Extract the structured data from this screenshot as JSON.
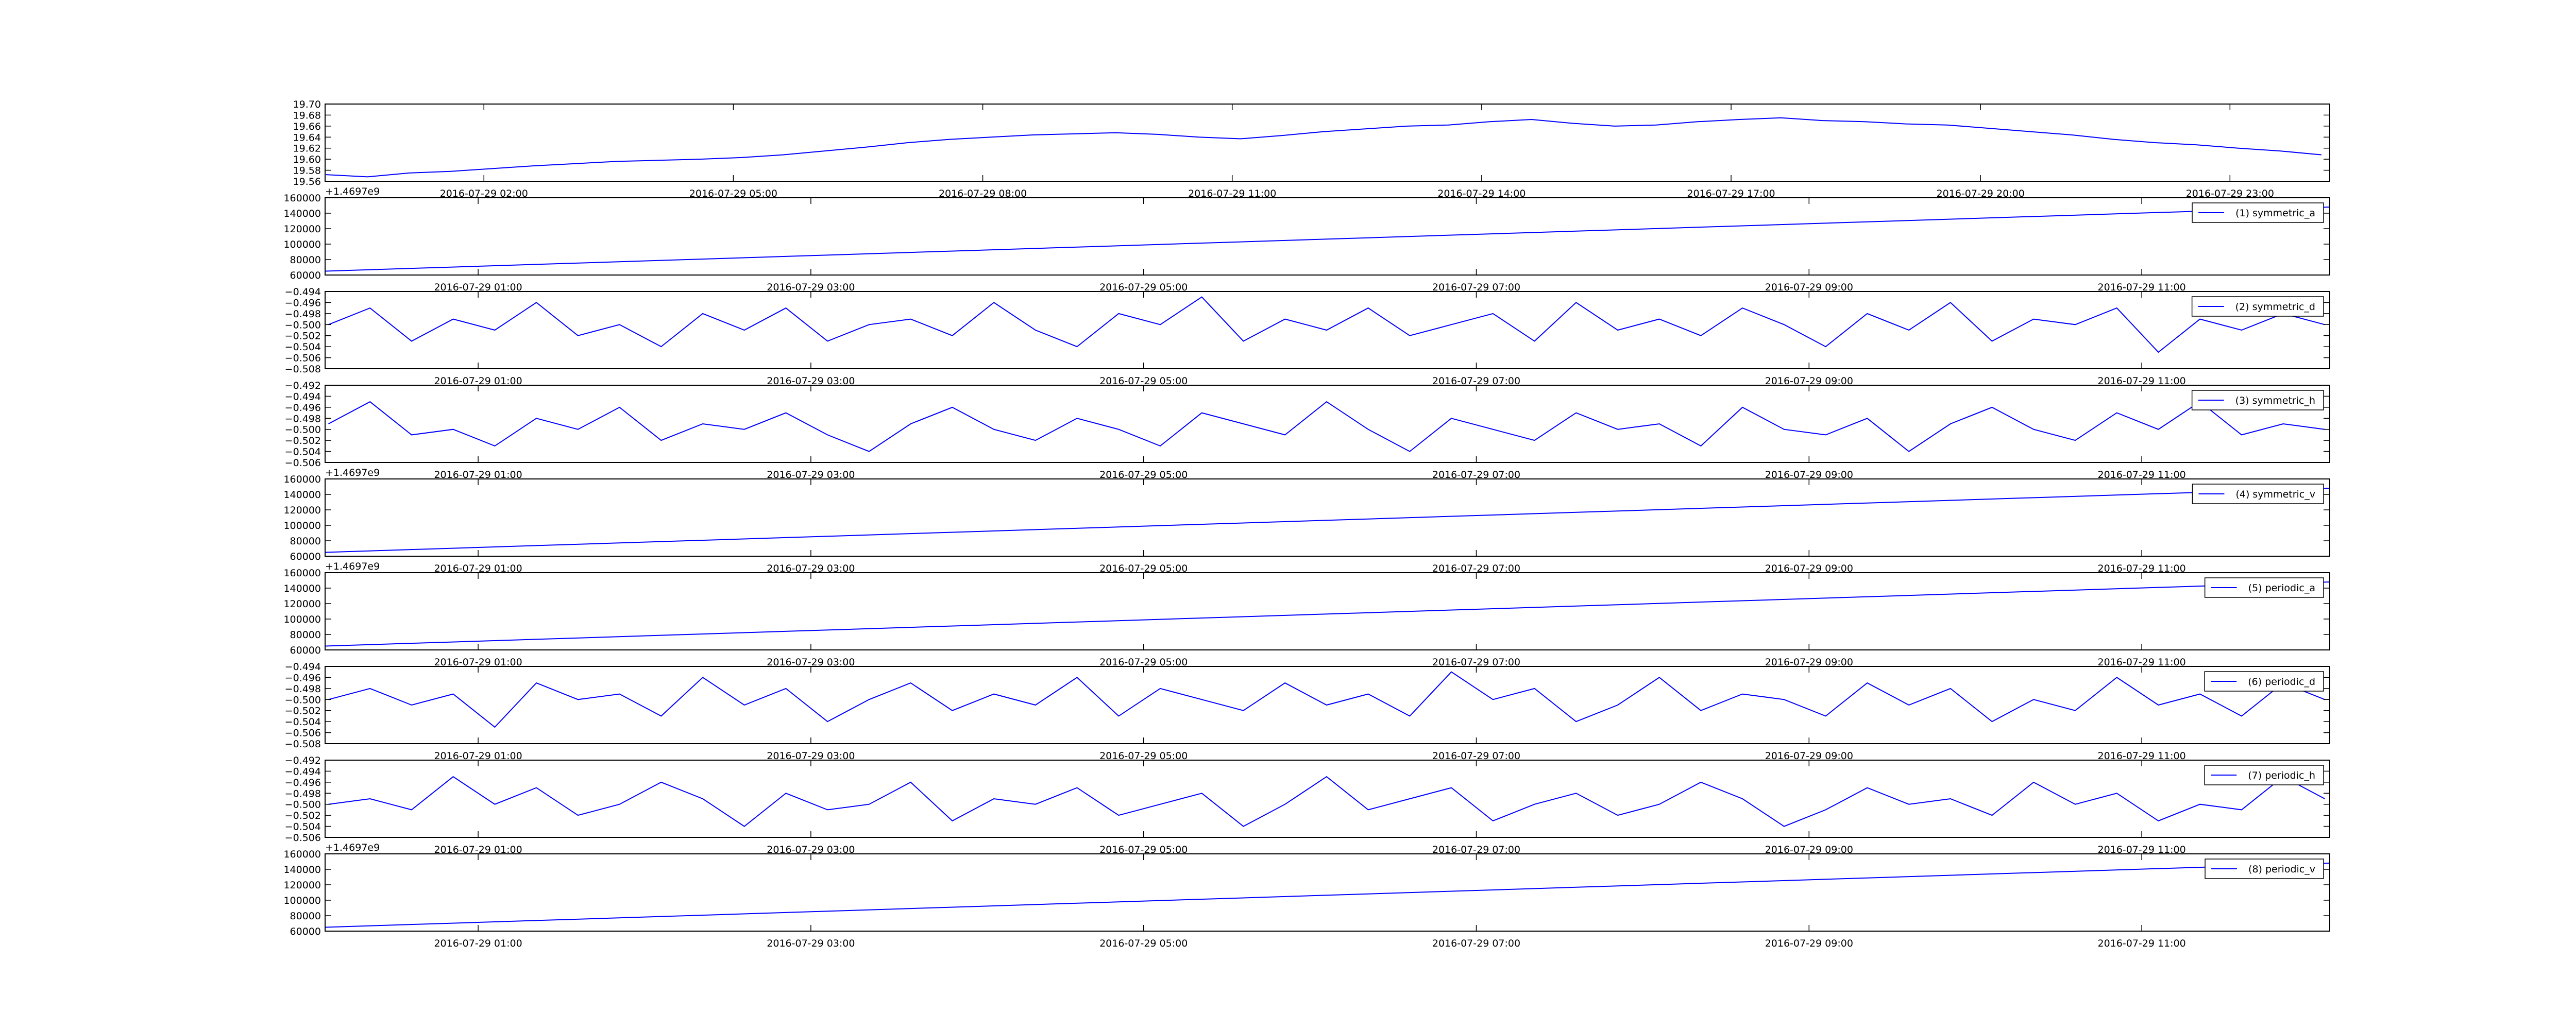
{
  "chart_data": [
    {
      "type": "line",
      "xlim": [
        0.09,
        24.2
      ],
      "xticks": [
        {
          "value": 2,
          "label": "2016-07-29 02:00"
        },
        {
          "value": 5,
          "label": "2016-07-29 05:00"
        },
        {
          "value": 8,
          "label": "2016-07-29 08:00"
        },
        {
          "value": 11,
          "label": "2016-07-29 11:00"
        },
        {
          "value": 14,
          "label": "2016-07-29 14:00"
        },
        {
          "value": 17,
          "label": "2016-07-29 17:00"
        },
        {
          "value": 20,
          "label": "2016-07-29 20:00"
        },
        {
          "value": 23,
          "label": "2016-07-29 23:00"
        }
      ],
      "ylim": [
        19.56,
        19.7
      ],
      "yticks": [
        19.56,
        19.58,
        {
          "value": 19.6,
          "label": "19.60"
        },
        19.62,
        19.64,
        19.66,
        19.68,
        {
          "value": 19.7,
          "label": "19.70"
        }
      ],
      "x": [
        0.1,
        0.6,
        1.1,
        1.6,
        2.1,
        2.6,
        3.1,
        3.6,
        4.1,
        4.6,
        5.1,
        5.6,
        6.1,
        6.6,
        7.1,
        7.6,
        8.1,
        8.6,
        9.1,
        9.6,
        10.1,
        10.6,
        11.1,
        11.6,
        12.1,
        12.6,
        13.1,
        13.6,
        14.1,
        14.6,
        15.1,
        15.6,
        16.1,
        16.6,
        17.1,
        17.6,
        18.1,
        18.6,
        19.1,
        19.6,
        20.1,
        20.6,
        21.1,
        21.6,
        22.1,
        22.6,
        23.1,
        23.6,
        24.1
      ],
      "series": [
        {
          "color": "#0000ff",
          "values": [
            19.572,
            19.568,
            19.575,
            19.578,
            19.583,
            19.588,
            19.592,
            19.596,
            19.598,
            19.6,
            19.603,
            19.608,
            19.615,
            19.622,
            19.63,
            19.636,
            19.64,
            19.644,
            19.646,
            19.648,
            19.645,
            19.64,
            19.637,
            19.643,
            19.65,
            19.655,
            19.66,
            19.662,
            19.668,
            19.672,
            19.665,
            19.66,
            19.662,
            19.668,
            19.672,
            19.675,
            19.67,
            19.668,
            19.664,
            19.662,
            19.656,
            19.65,
            19.644,
            19.636,
            19.63,
            19.626,
            19.62,
            19.615,
            19.608
          ]
        }
      ]
    },
    {
      "type": "line",
      "xlim": [
        0.08,
        12.13
      ],
      "xticks": [
        {
          "value": 1,
          "label": "2016-07-29 01:00"
        },
        {
          "value": 3,
          "label": "2016-07-29 03:00"
        },
        {
          "value": 5,
          "label": "2016-07-29 05:00"
        },
        {
          "value": 7,
          "label": "2016-07-29 07:00"
        },
        {
          "value": 9,
          "label": "2016-07-29 09:00"
        },
        {
          "value": 11,
          "label": "2016-07-29 11:00"
        }
      ],
      "ylim": [
        60000,
        160000
      ],
      "yticks": [
        60000,
        80000,
        100000,
        120000,
        140000,
        160000
      ],
      "offset_text": "+1.4697e9",
      "legend": "upper right",
      "x": [
        0.08,
        12.13
      ],
      "series": [
        {
          "name": "(1) symmetric_a",
          "color": "#0000ff",
          "values": [
            65000,
            148000
          ]
        }
      ]
    },
    {
      "type": "line",
      "xlim": [
        0.08,
        12.13
      ],
      "xticks": [
        {
          "value": 1,
          "label": "2016-07-29 01:00"
        },
        {
          "value": 3,
          "label": "2016-07-29 03:00"
        },
        {
          "value": 5,
          "label": "2016-07-29 05:00"
        },
        {
          "value": 7,
          "label": "2016-07-29 07:00"
        },
        {
          "value": 9,
          "label": "2016-07-29 09:00"
        },
        {
          "value": 11,
          "label": "2016-07-29 11:00"
        }
      ],
      "ylim": [
        -0.508,
        -0.494
      ],
      "yticks": [
        {
          "value": -0.508,
          "label": "−0.508"
        },
        {
          "value": -0.506,
          "label": "−0.506"
        },
        {
          "value": -0.504,
          "label": "−0.504"
        },
        {
          "value": -0.502,
          "label": "−0.502"
        },
        {
          "value": -0.5,
          "label": "−0.500"
        },
        {
          "value": -0.498,
          "label": "−0.498"
        },
        {
          "value": -0.496,
          "label": "−0.496"
        },
        {
          "value": -0.494,
          "label": "−0.494"
        }
      ],
      "legend": "upper right",
      "x": [
        0.1,
        0.35,
        0.6,
        0.85,
        1.1,
        1.35,
        1.6,
        1.85,
        2.1,
        2.35,
        2.6,
        2.85,
        3.1,
        3.35,
        3.6,
        3.85,
        4.1,
        4.35,
        4.6,
        4.85,
        5.1,
        5.35,
        5.6,
        5.85,
        6.1,
        6.35,
        6.6,
        6.85,
        7.1,
        7.35,
        7.6,
        7.85,
        8.1,
        8.35,
        8.6,
        8.85,
        9.1,
        9.35,
        9.6,
        9.85,
        10.1,
        10.35,
        10.6,
        10.85,
        11.1,
        11.35,
        11.6,
        11.85,
        12.1
      ],
      "series": [
        {
          "name": "(2) symmetric_d",
          "color": "#0000ff",
          "values": [
            -0.5,
            -0.497,
            -0.503,
            -0.499,
            -0.501,
            -0.496,
            -0.502,
            -0.5,
            -0.504,
            -0.498,
            -0.501,
            -0.497,
            -0.503,
            -0.5,
            -0.499,
            -0.502,
            -0.496,
            -0.501,
            -0.504,
            -0.498,
            -0.5,
            -0.495,
            -0.503,
            -0.499,
            -0.501,
            -0.497,
            -0.502,
            -0.5,
            -0.498,
            -0.503,
            -0.496,
            -0.501,
            -0.499,
            -0.502,
            -0.497,
            -0.5,
            -0.504,
            -0.498,
            -0.501,
            -0.496,
            -0.503,
            -0.499,
            -0.5,
            -0.497,
            -0.505,
            -0.499,
            -0.501,
            -0.498,
            -0.5
          ]
        }
      ]
    },
    {
      "type": "line",
      "xlim": [
        0.08,
        12.13
      ],
      "xticks": [
        {
          "value": 1,
          "label": "2016-07-29 01:00"
        },
        {
          "value": 3,
          "label": "2016-07-29 03:00"
        },
        {
          "value": 5,
          "label": "2016-07-29 05:00"
        },
        {
          "value": 7,
          "label": "2016-07-29 07:00"
        },
        {
          "value": 9,
          "label": "2016-07-29 09:00"
        },
        {
          "value": 11,
          "label": "2016-07-29 11:00"
        }
      ],
      "ylim": [
        -0.506,
        -0.492
      ],
      "yticks": [
        {
          "value": -0.506,
          "label": "−0.506"
        },
        {
          "value": -0.504,
          "label": "−0.504"
        },
        {
          "value": -0.502,
          "label": "−0.502"
        },
        {
          "value": -0.5,
          "label": "−0.500"
        },
        {
          "value": -0.498,
          "label": "−0.498"
        },
        {
          "value": -0.496,
          "label": "−0.496"
        },
        {
          "value": -0.494,
          "label": "−0.494"
        },
        {
          "value": -0.492,
          "label": "−0.492"
        }
      ],
      "legend": "upper right",
      "x": [
        0.1,
        0.35,
        0.6,
        0.85,
        1.1,
        1.35,
        1.6,
        1.85,
        2.1,
        2.35,
        2.6,
        2.85,
        3.1,
        3.35,
        3.6,
        3.85,
        4.1,
        4.35,
        4.6,
        4.85,
        5.1,
        5.35,
        5.6,
        5.85,
        6.1,
        6.35,
        6.6,
        6.85,
        7.1,
        7.35,
        7.6,
        7.85,
        8.1,
        8.35,
        8.6,
        8.85,
        9.1,
        9.35,
        9.6,
        9.85,
        10.1,
        10.35,
        10.6,
        10.85,
        11.1,
        11.35,
        11.6,
        11.85,
        12.1
      ],
      "series": [
        {
          "name": "(3) symmetric_h",
          "color": "#0000ff",
          "values": [
            -0.499,
            -0.495,
            -0.501,
            -0.5,
            -0.503,
            -0.498,
            -0.5,
            -0.496,
            -0.502,
            -0.499,
            -0.5,
            -0.497,
            -0.501,
            -0.504,
            -0.499,
            -0.496,
            -0.5,
            -0.502,
            -0.498,
            -0.5,
            -0.503,
            -0.497,
            -0.499,
            -0.501,
            -0.495,
            -0.5,
            -0.504,
            -0.498,
            -0.5,
            -0.502,
            -0.497,
            -0.5,
            -0.499,
            -0.503,
            -0.496,
            -0.5,
            -0.501,
            -0.498,
            -0.504,
            -0.499,
            -0.496,
            -0.5,
            -0.502,
            -0.497,
            -0.5,
            -0.495,
            -0.501,
            -0.499,
            -0.5
          ]
        }
      ]
    },
    {
      "type": "line",
      "xlim": [
        0.08,
        12.13
      ],
      "xticks": [
        {
          "value": 1,
          "label": "2016-07-29 01:00"
        },
        {
          "value": 3,
          "label": "2016-07-29 03:00"
        },
        {
          "value": 5,
          "label": "2016-07-29 05:00"
        },
        {
          "value": 7,
          "label": "2016-07-29 07:00"
        },
        {
          "value": 9,
          "label": "2016-07-29 09:00"
        },
        {
          "value": 11,
          "label": "2016-07-29 11:00"
        }
      ],
      "ylim": [
        60000,
        160000
      ],
      "yticks": [
        60000,
        80000,
        100000,
        120000,
        140000,
        160000
      ],
      "offset_text": "+1.4697e9",
      "legend": "upper right",
      "x": [
        0.08,
        12.13
      ],
      "series": [
        {
          "name": "(4) symmetric_v",
          "color": "#0000ff",
          "values": [
            65000,
            148000
          ]
        }
      ]
    },
    {
      "type": "line",
      "xlim": [
        0.08,
        12.13
      ],
      "xticks": [
        {
          "value": 1,
          "label": "2016-07-29 01:00"
        },
        {
          "value": 3,
          "label": "2016-07-29 03:00"
        },
        {
          "value": 5,
          "label": "2016-07-29 05:00"
        },
        {
          "value": 7,
          "label": "2016-07-29 07:00"
        },
        {
          "value": 9,
          "label": "2016-07-29 09:00"
        },
        {
          "value": 11,
          "label": "2016-07-29 11:00"
        }
      ],
      "ylim": [
        60000,
        160000
      ],
      "yticks": [
        60000,
        80000,
        100000,
        120000,
        140000,
        160000
      ],
      "offset_text": "+1.4697e9",
      "legend": "upper right",
      "x": [
        0.08,
        12.13
      ],
      "series": [
        {
          "name": "(5) periodic_a",
          "color": "#0000ff",
          "values": [
            65000,
            148000
          ]
        }
      ]
    },
    {
      "type": "line",
      "xlim": [
        0.08,
        12.13
      ],
      "xticks": [
        {
          "value": 1,
          "label": "2016-07-29 01:00"
        },
        {
          "value": 3,
          "label": "2016-07-29 03:00"
        },
        {
          "value": 5,
          "label": "2016-07-29 05:00"
        },
        {
          "value": 7,
          "label": "2016-07-29 07:00"
        },
        {
          "value": 9,
          "label": "2016-07-29 09:00"
        },
        {
          "value": 11,
          "label": "2016-07-29 11:00"
        }
      ],
      "ylim": [
        -0.508,
        -0.494
      ],
      "yticks": [
        {
          "value": -0.508,
          "label": "−0.508"
        },
        {
          "value": -0.506,
          "label": "−0.506"
        },
        {
          "value": -0.504,
          "label": "−0.504"
        },
        {
          "value": -0.502,
          "label": "−0.502"
        },
        {
          "value": -0.5,
          "label": "−0.500"
        },
        {
          "value": -0.498,
          "label": "−0.498"
        },
        {
          "value": -0.496,
          "label": "−0.496"
        },
        {
          "value": -0.494,
          "label": "−0.494"
        }
      ],
      "legend": "upper right",
      "x": [
        0.1,
        0.35,
        0.6,
        0.85,
        1.1,
        1.35,
        1.6,
        1.85,
        2.1,
        2.35,
        2.6,
        2.85,
        3.1,
        3.35,
        3.6,
        3.85,
        4.1,
        4.35,
        4.6,
        4.85,
        5.1,
        5.35,
        5.6,
        5.85,
        6.1,
        6.35,
        6.6,
        6.85,
        7.1,
        7.35,
        7.6,
        7.85,
        8.1,
        8.35,
        8.6,
        8.85,
        9.1,
        9.35,
        9.6,
        9.85,
        10.1,
        10.35,
        10.6,
        10.85,
        11.1,
        11.35,
        11.6,
        11.85,
        12.1
      ],
      "series": [
        {
          "name": "(6) periodic_d",
          "color": "#0000ff",
          "values": [
            -0.5,
            -0.498,
            -0.501,
            -0.499,
            -0.505,
            -0.497,
            -0.5,
            -0.499,
            -0.503,
            -0.496,
            -0.501,
            -0.498,
            -0.504,
            -0.5,
            -0.497,
            -0.502,
            -0.499,
            -0.501,
            -0.496,
            -0.503,
            -0.498,
            -0.5,
            -0.502,
            -0.497,
            -0.501,
            -0.499,
            -0.503,
            -0.495,
            -0.5,
            -0.498,
            -0.504,
            -0.501,
            -0.496,
            -0.502,
            -0.499,
            -0.5,
            -0.503,
            -0.497,
            -0.501,
            -0.498,
            -0.504,
            -0.5,
            -0.502,
            -0.496,
            -0.501,
            -0.499,
            -0.503,
            -0.497,
            -0.5
          ]
        }
      ]
    },
    {
      "type": "line",
      "xlim": [
        0.08,
        12.13
      ],
      "xticks": [
        {
          "value": 1,
          "label": "2016-07-29 01:00"
        },
        {
          "value": 3,
          "label": "2016-07-29 03:00"
        },
        {
          "value": 5,
          "label": "2016-07-29 05:00"
        },
        {
          "value": 7,
          "label": "2016-07-29 07:00"
        },
        {
          "value": 9,
          "label": "2016-07-29 09:00"
        },
        {
          "value": 11,
          "label": "2016-07-29 11:00"
        }
      ],
      "ylim": [
        -0.506,
        -0.492
      ],
      "yticks": [
        {
          "value": -0.506,
          "label": "−0.506"
        },
        {
          "value": -0.504,
          "label": "−0.504"
        },
        {
          "value": -0.502,
          "label": "−0.502"
        },
        {
          "value": -0.5,
          "label": "−0.500"
        },
        {
          "value": -0.498,
          "label": "−0.498"
        },
        {
          "value": -0.496,
          "label": "−0.496"
        },
        {
          "value": -0.494,
          "label": "−0.494"
        },
        {
          "value": -0.492,
          "label": "−0.492"
        }
      ],
      "legend": "upper right",
      "x": [
        0.1,
        0.35,
        0.6,
        0.85,
        1.1,
        1.35,
        1.6,
        1.85,
        2.1,
        2.35,
        2.6,
        2.85,
        3.1,
        3.35,
        3.6,
        3.85,
        4.1,
        4.35,
        4.6,
        4.85,
        5.1,
        5.35,
        5.6,
        5.85,
        6.1,
        6.35,
        6.6,
        6.85,
        7.1,
        7.35,
        7.6,
        7.85,
        8.1,
        8.35,
        8.6,
        8.85,
        9.1,
        9.35,
        9.6,
        9.85,
        10.1,
        10.35,
        10.6,
        10.85,
        11.1,
        11.35,
        11.6,
        11.85,
        12.1
      ],
      "series": [
        {
          "name": "(7) periodic_h",
          "color": "#0000ff",
          "values": [
            -0.5,
            -0.499,
            -0.501,
            -0.495,
            -0.5,
            -0.497,
            -0.502,
            -0.5,
            -0.496,
            -0.499,
            -0.504,
            -0.498,
            -0.501,
            -0.5,
            -0.496,
            -0.503,
            -0.499,
            -0.5,
            -0.497,
            -0.502,
            -0.5,
            -0.498,
            -0.504,
            -0.5,
            -0.495,
            -0.501,
            -0.499,
            -0.497,
            -0.503,
            -0.5,
            -0.498,
            -0.502,
            -0.5,
            -0.496,
            -0.499,
            -0.504,
            -0.501,
            -0.497,
            -0.5,
            -0.499,
            -0.502,
            -0.496,
            -0.5,
            -0.498,
            -0.503,
            -0.5,
            -0.501,
            -0.495,
            -0.499
          ]
        }
      ]
    },
    {
      "type": "line",
      "xlim": [
        0.08,
        12.13
      ],
      "xticks": [
        {
          "value": 1,
          "label": "2016-07-29 01:00"
        },
        {
          "value": 3,
          "label": "2016-07-29 03:00"
        },
        {
          "value": 5,
          "label": "2016-07-29 05:00"
        },
        {
          "value": 7,
          "label": "2016-07-29 07:00"
        },
        {
          "value": 9,
          "label": "2016-07-29 09:00"
        },
        {
          "value": 11,
          "label": "2016-07-29 11:00"
        }
      ],
      "ylim": [
        60000,
        160000
      ],
      "yticks": [
        60000,
        80000,
        100000,
        120000,
        140000,
        160000
      ],
      "offset_text": "+1.4697e9",
      "legend": "upper right",
      "x": [
        0.08,
        12.13
      ],
      "series": [
        {
          "name": "(8) periodic_v",
          "color": "#0000ff",
          "values": [
            65000,
            148000
          ]
        }
      ]
    }
  ]
}
